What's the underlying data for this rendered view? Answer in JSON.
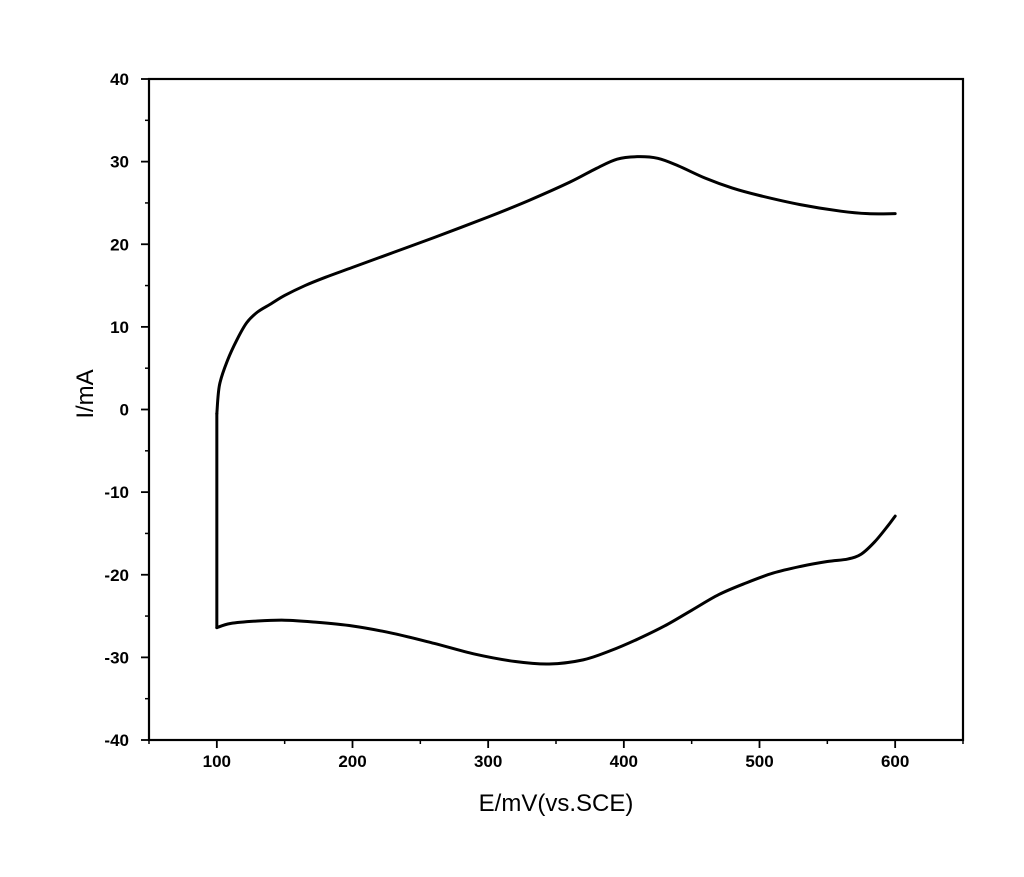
{
  "chart_data": {
    "type": "line",
    "title": "",
    "xlabel": "E/mV(vs.SCE)",
    "ylabel": "I/mA",
    "xlim": [
      50,
      650
    ],
    "ylim": [
      -40,
      40
    ],
    "x_ticks": [
      100,
      200,
      300,
      400,
      500,
      600
    ],
    "y_ticks": [
      -40,
      -30,
      -20,
      -10,
      0,
      10,
      20,
      30,
      40
    ],
    "x_tick_labels": [
      "100",
      "200",
      "300",
      "400",
      "500",
      "600"
    ],
    "y_tick_labels": [
      "-40",
      "-30",
      "-20",
      "-10",
      "0",
      "10",
      "20",
      "30",
      "40"
    ],
    "grid": false,
    "legend": "none",
    "line_color": "#000000",
    "series": [
      {
        "points": [
          [
            100,
            -0.5
          ],
          [
            102,
            3.0
          ],
          [
            108,
            6.0
          ],
          [
            115,
            8.5
          ],
          [
            122,
            10.5
          ],
          [
            130,
            11.8
          ],
          [
            140,
            12.8
          ],
          [
            150,
            13.8
          ],
          [
            165,
            15.0
          ],
          [
            180,
            16.0
          ],
          [
            200,
            17.2
          ],
          [
            230,
            19.0
          ],
          [
            260,
            20.8
          ],
          [
            300,
            23.3
          ],
          [
            330,
            25.3
          ],
          [
            360,
            27.5
          ],
          [
            380,
            29.2
          ],
          [
            395,
            30.3
          ],
          [
            410,
            30.6
          ],
          [
            425,
            30.4
          ],
          [
            440,
            29.5
          ],
          [
            460,
            28.0
          ],
          [
            480,
            26.8
          ],
          [
            500,
            25.9
          ],
          [
            530,
            24.8
          ],
          [
            560,
            24.0
          ],
          [
            580,
            23.7
          ],
          [
            600,
            23.7
          ]
        ]
      },
      {
        "points": [
          [
            100,
            -26.4
          ],
          [
            110,
            -25.9
          ],
          [
            130,
            -25.6
          ],
          [
            150,
            -25.5
          ],
          [
            170,
            -25.7
          ],
          [
            200,
            -26.2
          ],
          [
            230,
            -27.1
          ],
          [
            260,
            -28.3
          ],
          [
            290,
            -29.6
          ],
          [
            320,
            -30.5
          ],
          [
            345,
            -30.8
          ],
          [
            370,
            -30.3
          ],
          [
            390,
            -29.2
          ],
          [
            410,
            -27.8
          ],
          [
            430,
            -26.2
          ],
          [
            450,
            -24.3
          ],
          [
            470,
            -22.4
          ],
          [
            490,
            -21.0
          ],
          [
            510,
            -19.8
          ],
          [
            530,
            -19.0
          ],
          [
            550,
            -18.4
          ],
          [
            565,
            -18.1
          ],
          [
            575,
            -17.5
          ],
          [
            585,
            -16.0
          ],
          [
            595,
            -14.0
          ],
          [
            600,
            -12.9
          ]
        ]
      },
      {
        "points": [
          [
            100,
            -26.4
          ],
          [
            100,
            -0.5
          ]
        ]
      }
    ]
  }
}
